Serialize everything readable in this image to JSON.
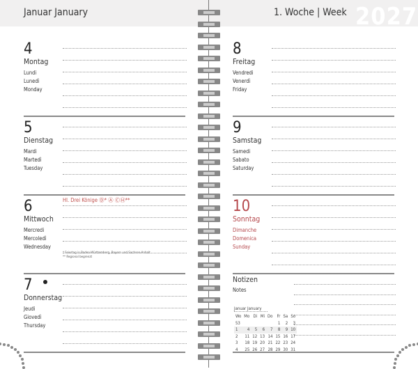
{
  "header": {
    "month": "Januar  January",
    "week": "1. Woche | Week",
    "year": "2027"
  },
  "days": [
    {
      "num": "4",
      "name": "Montag",
      "tr": [
        "Lundi",
        "Lunedì",
        "Monday"
      ]
    },
    {
      "num": "5",
      "name": "Dienstag",
      "tr": [
        "Mardi",
        "Martedì",
        "Tuesday"
      ]
    },
    {
      "num": "6",
      "name": "Mittwoch",
      "tr": [
        "Mercredi",
        "Mercoledì",
        "Wednesday"
      ],
      "holiday": "Hl. Drei Könige  Ⓓ*  Ⓐ  ⒸⒽ**",
      "footnotes": [
        "*  Feiertag in Baden-Württemberg, Bayern und Sachsen-Anhalt",
        "** Regional begrenzt"
      ]
    },
    {
      "num": "7",
      "name": "Donnerstag",
      "tr": [
        "Jeudi",
        "Giovedì",
        "Thursday"
      ],
      "moon": "new-moon-icon"
    },
    {
      "num": "8",
      "name": "Freitag",
      "tr": [
        "Vendredi",
        "Venerdì",
        "Friday"
      ]
    },
    {
      "num": "9",
      "name": "Samstag",
      "tr": [
        "Samedi",
        "Sabato",
        "Saturday"
      ]
    },
    {
      "num": "10",
      "name": "Sonntag",
      "tr": [
        "Dimanche",
        "Domenica",
        "Sunday"
      ],
      "color": "#b5474b"
    }
  ],
  "notes": {
    "title": "Notizen",
    "subtitle": "Notes"
  },
  "mini_calendar": {
    "title": "Januar  January",
    "headers": [
      "Wo",
      "Mo",
      "Di",
      "Mi",
      "Do",
      "Fr",
      "Sa",
      "So"
    ],
    "rows": [
      [
        "53",
        "",
        "",
        "",
        "",
        "1",
        "2",
        "3"
      ],
      [
        "1",
        "4",
        "5",
        "6",
        "7",
        "8",
        "9",
        "10"
      ],
      [
        "2",
        "11",
        "12",
        "13",
        "14",
        "15",
        "16",
        "17"
      ],
      [
        "3",
        "18",
        "19",
        "20",
        "21",
        "22",
        "23",
        "24"
      ],
      [
        "4",
        "25",
        "26",
        "27",
        "28",
        "29",
        "30",
        "31"
      ]
    ],
    "highlight_week": "1"
  }
}
